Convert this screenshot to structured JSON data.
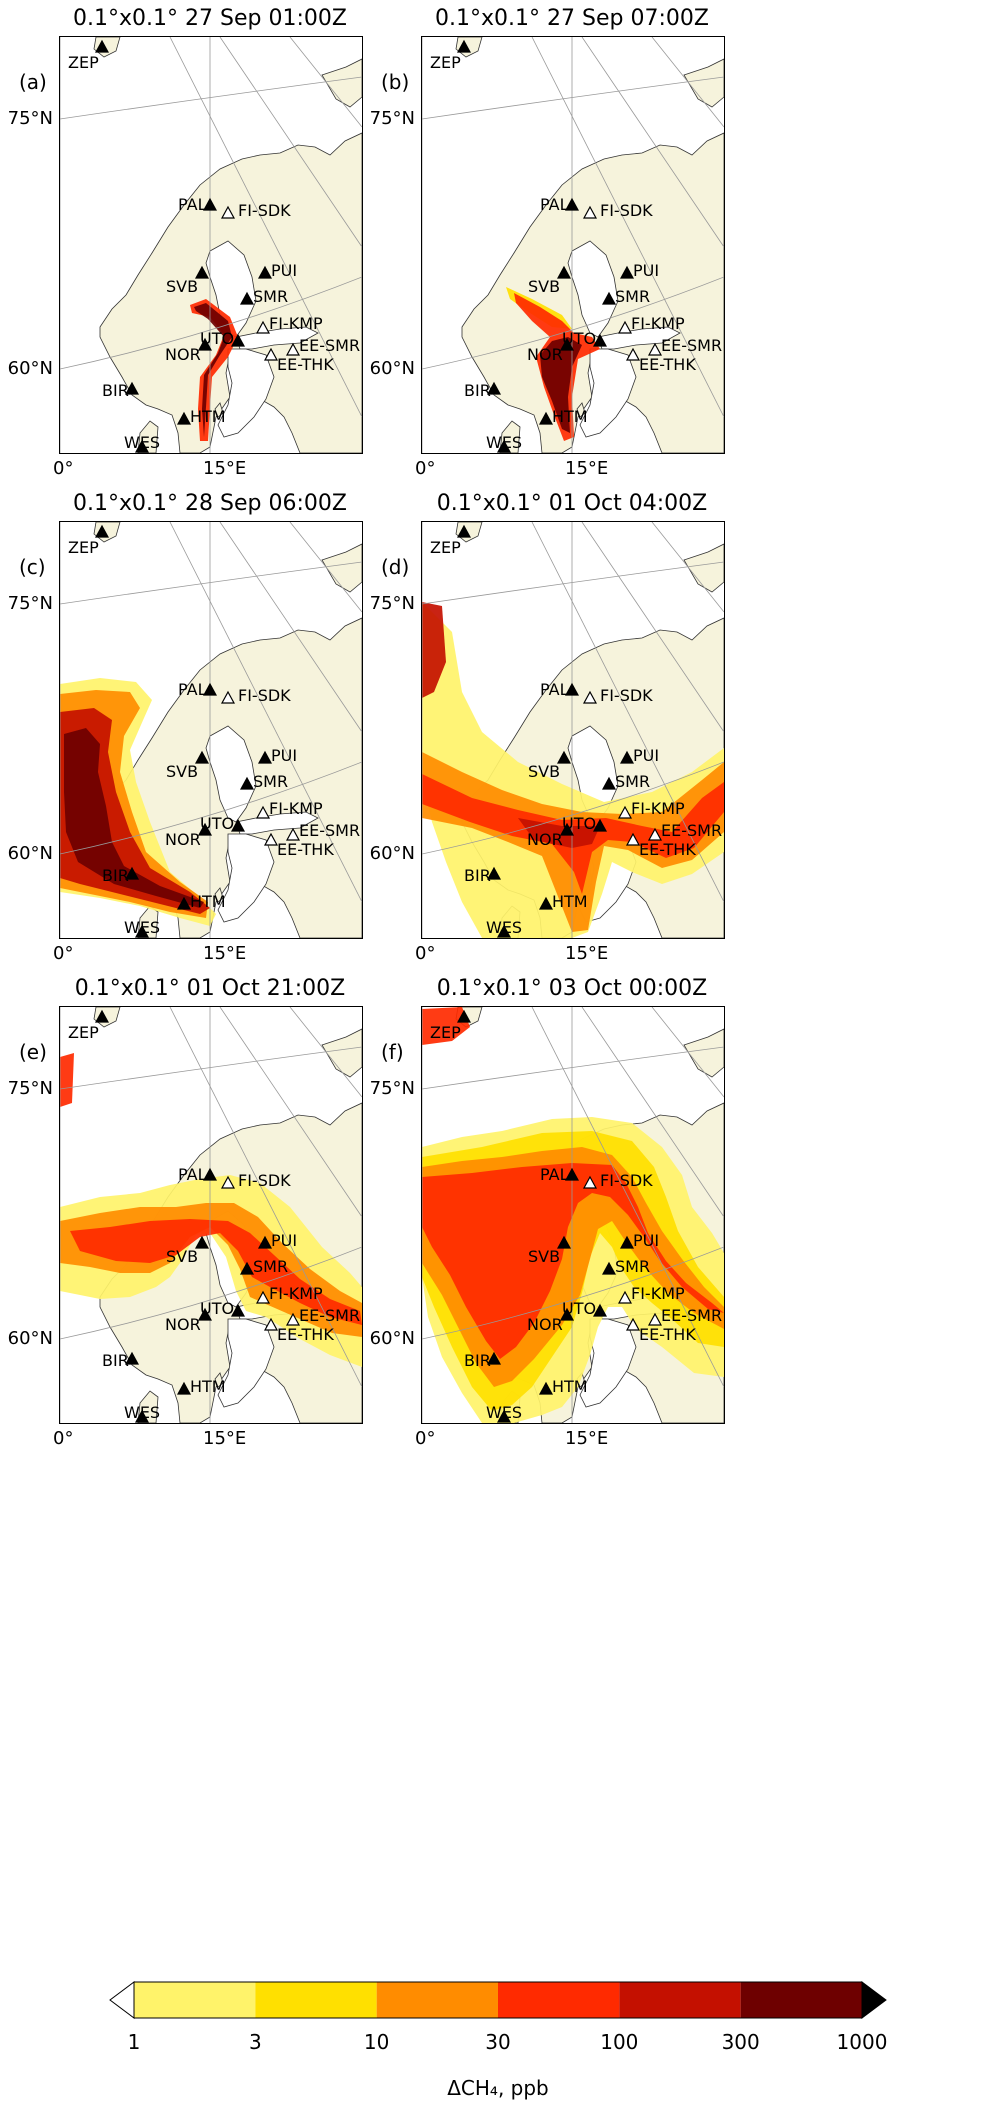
{
  "panels": [
    {
      "id": "a",
      "letter": "(a)",
      "title": "0.1°x0.1° 27 Sep 01:00Z"
    },
    {
      "id": "b",
      "letter": "(b)",
      "title": "0.1°x0.1° 27 Sep 07:00Z"
    },
    {
      "id": "c",
      "letter": "(c)",
      "title": "0.1°x0.1° 28 Sep 06:00Z"
    },
    {
      "id": "d",
      "letter": "(d)",
      "title": "0.1°x0.1° 01 Oct 04:00Z"
    },
    {
      "id": "e",
      "letter": "(e)",
      "title": "0.1°x0.1° 01 Oct 21:00Z"
    },
    {
      "id": "f",
      "letter": "(f)",
      "title": "0.1°x0.1° 03 Oct 00:00Z"
    }
  ],
  "axes": {
    "lat_labels": [
      "75°N",
      "60°N"
    ],
    "lon_labels": [
      "0°",
      "15°E"
    ]
  },
  "stations": [
    {
      "code": "ZEP",
      "marker": "filled"
    },
    {
      "code": "PAL",
      "marker": "filled"
    },
    {
      "code": "FI-SDK",
      "marker": "open"
    },
    {
      "code": "PUI",
      "marker": "filled"
    },
    {
      "code": "SVB",
      "marker": "filled"
    },
    {
      "code": "SMR",
      "marker": "filled"
    },
    {
      "code": "FI-KMP",
      "marker": "open"
    },
    {
      "code": "UTO",
      "marker": "filled"
    },
    {
      "code": "NOR",
      "marker": "filled"
    },
    {
      "code": "EE-SMR",
      "marker": "open"
    },
    {
      "code": "EE-THK",
      "marker": "open"
    },
    {
      "code": "BIR",
      "marker": "filled"
    },
    {
      "code": "HTM",
      "marker": "filled"
    },
    {
      "code": "WES",
      "marker": "filled"
    }
  ],
  "colorbar": {
    "ticks": [
      "1",
      "3",
      "10",
      "30",
      "100",
      "300",
      "1000"
    ],
    "colors": [
      "#fff36a",
      "#ffe000",
      "#ff8c00",
      "#ff2a00",
      "#c41000",
      "#6e0000"
    ],
    "extend_low_color": "#ffffff",
    "extend_high_color": "#000000",
    "label": "ΔCH₄, ppb"
  },
  "land_color": "#f6f3dc",
  "sea_color": "#ffffff"
}
